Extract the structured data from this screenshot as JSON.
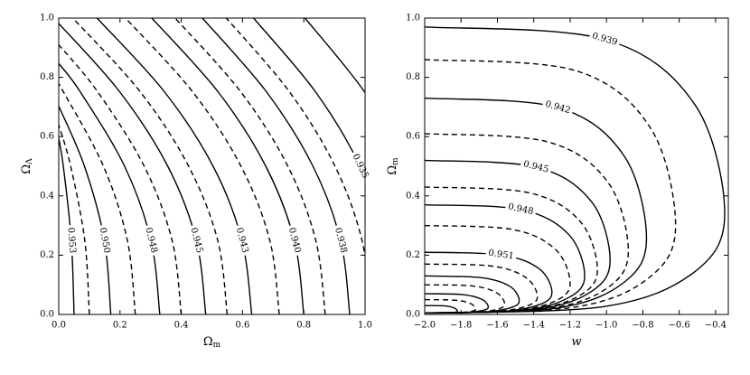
{
  "chart_data": [
    {
      "type": "contour",
      "xlabel": {
        "base": "Ω",
        "sub": "m"
      },
      "ylabel": {
        "base": "Ω",
        "sub": "Λ"
      },
      "xlim": [
        0,
        1
      ],
      "ylim": [
        0,
        1
      ],
      "xticks": [
        {
          "value": 0,
          "label": "0.0"
        },
        {
          "value": 0.2,
          "label": "0.2"
        },
        {
          "value": 0.4,
          "label": "0.4"
        },
        {
          "value": 0.6,
          "label": "0.6"
        },
        {
          "value": 0.8,
          "label": "0.8"
        },
        {
          "value": 1,
          "label": "1.0"
        }
      ],
      "yticks": [
        {
          "value": 0,
          "label": "0.0"
        },
        {
          "value": 0.2,
          "label": "0.2"
        },
        {
          "value": 0.4,
          "label": "0.4"
        },
        {
          "value": 0.6,
          "label": "0.6"
        },
        {
          "value": 0.8,
          "label": "0.8"
        },
        {
          "value": 1,
          "label": "1.0"
        }
      ],
      "color": "#000000",
      "series": [
        {
          "style": "solid",
          "label": "0.953",
          "x": [
            0.05,
            0.041,
            0.015,
            0
          ],
          "y": [
            0,
            0.25,
            0.5,
            0.595
          ]
        },
        {
          "style": "dashed",
          "x": [
            0.1,
            0.085,
            0.039,
            0
          ],
          "y": [
            0,
            0.25,
            0.5,
            0.64
          ]
        },
        {
          "style": "solid",
          "label": "0.950",
          "x": [
            0.17,
            0.149,
            0.084,
            0
          ],
          "y": [
            0,
            0.25,
            0.5,
            0.703
          ]
        },
        {
          "style": "dashed",
          "x": [
            0.25,
            0.224,
            0.146,
            0.016,
            0
          ],
          "y": [
            0,
            0.25,
            0.5,
            0.75,
            0.775
          ]
        },
        {
          "style": "solid",
          "label": "0.948",
          "x": [
            0.33,
            0.301,
            0.215,
            0.071,
            0
          ],
          "y": [
            0,
            0.25,
            0.5,
            0.75,
            0.847
          ]
        },
        {
          "style": "dashed",
          "x": [
            0.4,
            0.37,
            0.279,
            0.128,
            0
          ],
          "y": [
            0,
            0.25,
            0.5,
            0.75,
            0.91
          ]
        },
        {
          "style": "solid",
          "label": "0.945",
          "x": [
            0.48,
            0.449,
            0.356,
            0.2,
            0
          ],
          "y": [
            0,
            0.25,
            0.5,
            0.75,
            0.982
          ]
        },
        {
          "style": "dashed",
          "x": [
            0.55,
            0.519,
            0.424,
            0.267,
            0.046
          ],
          "y": [
            0,
            0.25,
            0.5,
            0.75,
            1
          ]
        },
        {
          "style": "solid",
          "label": "0.943",
          "x": [
            0.63,
            0.598,
            0.504,
            0.346,
            0.125
          ],
          "y": [
            0,
            0.25,
            0.5,
            0.75,
            1
          ]
        },
        {
          "style": "dashed",
          "x": [
            0.72,
            0.689,
            0.595,
            0.438,
            0.218
          ],
          "y": [
            0,
            0.25,
            0.5,
            0.75,
            1
          ]
        },
        {
          "style": "solid",
          "label": "0.940",
          "x": [
            0.8,
            0.769,
            0.676,
            0.521,
            0.304
          ],
          "y": [
            0,
            0.25,
            0.5,
            0.75,
            1
          ]
        },
        {
          "style": "dashed",
          "x": [
            0.87,
            0.839,
            0.748,
            0.595,
            0.38
          ],
          "y": [
            0,
            0.25,
            0.5,
            0.75,
            1
          ]
        },
        {
          "style": "solid",
          "label": "0.938",
          "x": [
            0.95,
            0.92,
            0.83,
            0.679,
            0.469
          ],
          "y": [
            0,
            0.25,
            0.5,
            0.75,
            1
          ]
        },
        {
          "style": "dashed",
          "x": [
            1.02,
            0.99,
            0.902,
            0.754,
            0.547
          ],
          "y": [
            0,
            0.25,
            0.5,
            0.75,
            1
          ]
        },
        {
          "style": "solid",
          "label": "0.935",
          "x": [
            1.1,
            1.071,
            0.984,
            0.839,
            0.636
          ],
          "y": [
            0,
            0.25,
            0.5,
            0.75,
            1
          ]
        },
        {
          "style": "solid",
          "x": [
            1.25,
            1.222,
            1.139,
            0.999,
            0.804
          ],
          "y": [
            0,
            0.25,
            0.5,
            0.75,
            1
          ]
        }
      ]
    },
    {
      "type": "contour",
      "xlabel": {
        "base": "w"
      },
      "ylabel": {
        "base": "Ω",
        "sub": "m"
      },
      "xlim": [
        -2.0,
        -0.33
      ],
      "ylim": [
        0,
        1
      ],
      "xticks": [
        {
          "value": -2,
          "label": "−2.0"
        },
        {
          "value": -1.8,
          "label": "−1.8"
        },
        {
          "value": -1.6,
          "label": "−1.6"
        },
        {
          "value": -1.4,
          "label": "−1.4"
        },
        {
          "value": -1.2,
          "label": "−1.2"
        },
        {
          "value": -1,
          "label": "−1.0"
        },
        {
          "value": -0.8,
          "label": "−0.8"
        },
        {
          "value": -0.6,
          "label": "−0.6"
        },
        {
          "value": -0.4,
          "label": "−0.4"
        }
      ],
      "yticks": [
        {
          "value": 0,
          "label": "0.0"
        },
        {
          "value": 0.2,
          "label": "0.2"
        },
        {
          "value": 0.4,
          "label": "0.4"
        },
        {
          "value": 0.6,
          "label": "0.6"
        },
        {
          "value": 0.8,
          "label": "0.8"
        },
        {
          "value": 1,
          "label": "1.0"
        }
      ],
      "color": "#000000",
      "series": [
        {
          "style": "solid",
          "label": "0.939",
          "x": [
            -2,
            -1.01,
            -0.515,
            -0.35,
            -0.515,
            -1.01,
            -2
          ],
          "y": [
            0.97,
            0.928,
            0.709,
            0.34,
            0.144,
            0.027,
            0.005
          ]
        },
        {
          "style": "dashed",
          "x": [
            -2,
            -1.172,
            -0.758,
            -0.62,
            -0.758,
            -1.172,
            -2
          ],
          "y": [
            0.86,
            0.823,
            0.629,
            0.301,
            0.128,
            0.025,
            0.005
          ]
        },
        {
          "style": "solid",
          "label": "0.942",
          "x": [
            -2,
            -1.268,
            -0.902,
            -0.78,
            -0.902,
            -1.268,
            -2
          ],
          "y": [
            0.73,
            0.698,
            0.534,
            0.256,
            0.109,
            0.022,
            0.005
          ]
        },
        {
          "style": "dashed",
          "x": [
            -2,
            -1.328,
            -0.992,
            -0.88,
            -0.992,
            -1.328,
            -2
          ],
          "y": [
            0.61,
            0.583,
            0.446,
            0.214,
            0.091,
            0.019,
            0.005
          ]
        },
        {
          "style": "solid",
          "label": "0.945",
          "x": [
            -2,
            -1.388,
            -1.082,
            -0.98,
            -1.082,
            -1.388,
            -2
          ],
          "y": [
            0.52,
            0.497,
            0.38,
            0.182,
            0.078,
            0.017,
            0.005
          ]
        },
        {
          "style": "dashed",
          "x": [
            -2,
            -1.43,
            -1.145,
            -1.05,
            -1.145,
            -1.43,
            -2
          ],
          "y": [
            0.43,
            0.411,
            0.314,
            0.151,
            0.065,
            0.015,
            0.005
          ]
        },
        {
          "style": "solid",
          "label": "0.948",
          "x": [
            -2,
            -1.472,
            -1.208,
            -1.12,
            -1.208,
            -1.472,
            -2
          ],
          "y": [
            0.37,
            0.354,
            0.27,
            0.13,
            0.057,
            0.013,
            0.005
          ]
        },
        {
          "style": "dashed",
          "x": [
            -2,
            -1.52,
            -1.28,
            -1.2,
            -1.28,
            -1.52,
            -2
          ],
          "y": [
            0.3,
            0.287,
            0.219,
            0.105,
            0.046,
            0.012,
            0.005
          ]
        },
        {
          "style": "solid",
          "label": "0.951",
          "x": [
            -2,
            -1.58,
            -1.37,
            -1.3,
            -1.37,
            -1.58,
            -2
          ],
          "y": [
            0.21,
            0.201,
            0.154,
            0.074,
            0.033,
            0.01,
            0.005
          ]
        },
        {
          "style": "dashed",
          "x": [
            -2,
            -1.628,
            -1.442,
            -1.38,
            -1.442,
            -1.628,
            -2
          ],
          "y": [
            0.17,
            0.163,
            0.124,
            0.06,
            0.028,
            0.009,
            0.005
          ]
        },
        {
          "style": "solid",
          "x": [
            -2,
            -1.688,
            -1.532,
            -1.48,
            -1.532,
            -1.688,
            -2
          ],
          "y": [
            0.13,
            0.124,
            0.095,
            0.046,
            0.022,
            0.008,
            0.005
          ]
        },
        {
          "style": "dashed",
          "x": [
            -2,
            -1.736,
            -1.604,
            -1.56,
            -1.604,
            -1.736,
            -2
          ],
          "y": [
            0.1,
            0.096,
            0.073,
            0.035,
            0.017,
            0.007,
            0.005
          ]
        },
        {
          "style": "solid",
          "x": [
            -2,
            -1.79,
            -1.685,
            -1.65,
            -1.685,
            -1.79,
            -2
          ],
          "y": [
            0.07,
            0.067,
            0.051,
            0.025,
            0.013,
            0.006,
            0.005
          ]
        },
        {
          "style": "dashed",
          "x": [
            -2,
            -1.832,
            -1.748,
            -1.72,
            -1.748,
            -1.832,
            -2
          ],
          "y": [
            0.05,
            0.048,
            0.037,
            0.018,
            0.01,
            0.006,
            0.005
          ]
        },
        {
          "style": "solid",
          "x": [
            -2,
            -1.892,
            -1.838,
            -1.82,
            -1.838,
            -1.892,
            -2
          ],
          "y": [
            0.03,
            0.029,
            0.022,
            0.011,
            0.007,
            0.005,
            0.005
          ]
        }
      ]
    }
  ]
}
